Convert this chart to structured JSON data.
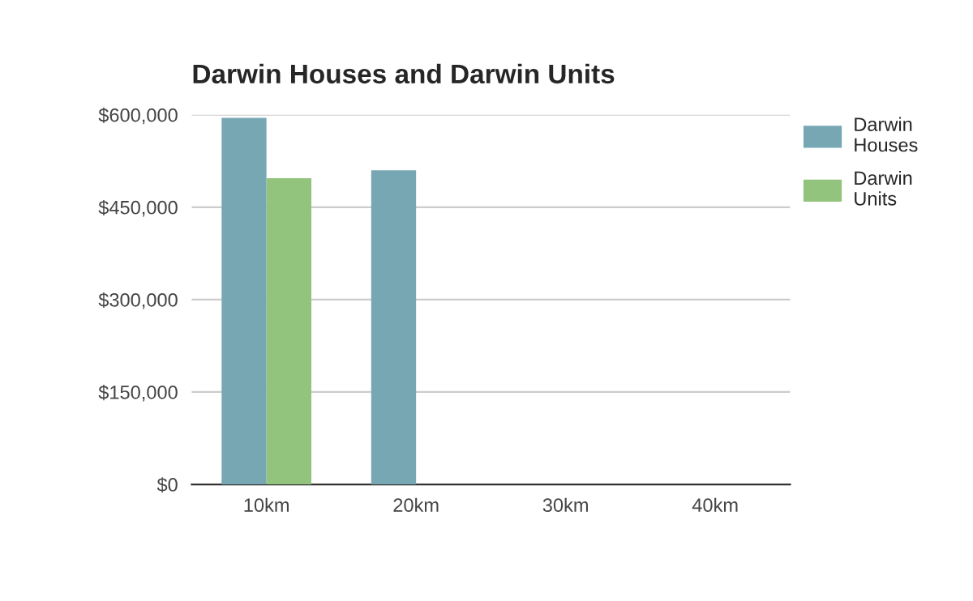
{
  "chart_data": {
    "type": "bar",
    "title": "Darwin Houses and Darwin Units",
    "categories": [
      "10km",
      "20km",
      "30km",
      "40km"
    ],
    "series": [
      {
        "name": "Darwin Houses",
        "color": "#76a7b3",
        "values": [
          595000,
          510000,
          null,
          null
        ]
      },
      {
        "name": "Darwin Units",
        "color": "#93c47d",
        "values": [
          497000,
          null,
          null,
          null
        ]
      }
    ],
    "ylim": [
      0,
      600000
    ],
    "yticks": [
      {
        "value": 0,
        "label": "$0"
      },
      {
        "value": 150000,
        "label": "$150,000"
      },
      {
        "value": 300000,
        "label": "$300,000"
      },
      {
        "value": 450000,
        "label": "$450,000"
      },
      {
        "value": 600000,
        "label": "$600,000"
      }
    ],
    "grid": "y",
    "legend": "top right"
  }
}
